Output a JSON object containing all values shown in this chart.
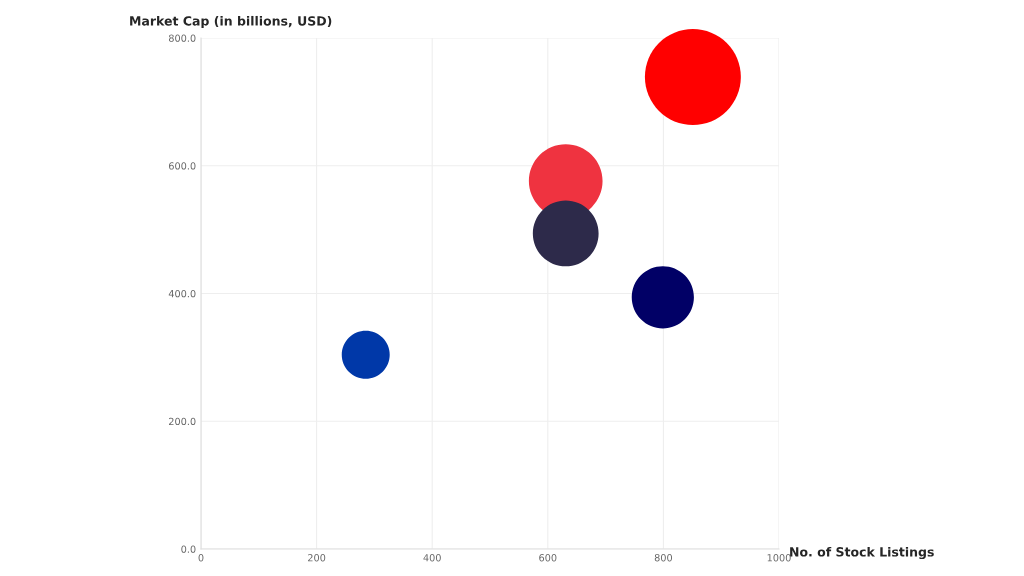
{
  "chart_data": {
    "type": "bubble",
    "ylabel": "Market Cap (in billions, USD)",
    "xlabel": "No. of Stock Listings",
    "series": [
      {
        "color": "#ff0000",
        "x": [
          851
        ],
        "values": [
          739
        ],
        "sizes": [
          1
        ]
      },
      {
        "color": "#ef3340",
        "x": [
          631
        ],
        "values": [
          576
        ],
        "sizes": [
          0.59
        ]
      },
      {
        "color": "#2d2a4a",
        "x": [
          631
        ],
        "values": [
          494
        ],
        "sizes": [
          0.47
        ]
      },
      {
        "color": "#010066",
        "x": [
          799
        ],
        "values": [
          394
        ],
        "sizes": [
          0.42
        ]
      },
      {
        "color": "#0038a8",
        "x": [
          285
        ],
        "values": [
          304
        ],
        "sizes": [
          0.25
        ]
      }
    ],
    "xlim": [
      0,
      1000
    ],
    "xticks": [
      0,
      200,
      400,
      600,
      800,
      1000
    ],
    "ylim": [
      0,
      800
    ],
    "yticks": [
      {
        "value": 0,
        "label": "0.0"
      },
      {
        "value": 200,
        "label": "200.0"
      },
      {
        "value": 400,
        "label": "400.0"
      },
      {
        "value": 600,
        "label": "600.0"
      },
      {
        "value": 800,
        "label": "800.0"
      }
    ],
    "grid": true,
    "legend": false
  }
}
